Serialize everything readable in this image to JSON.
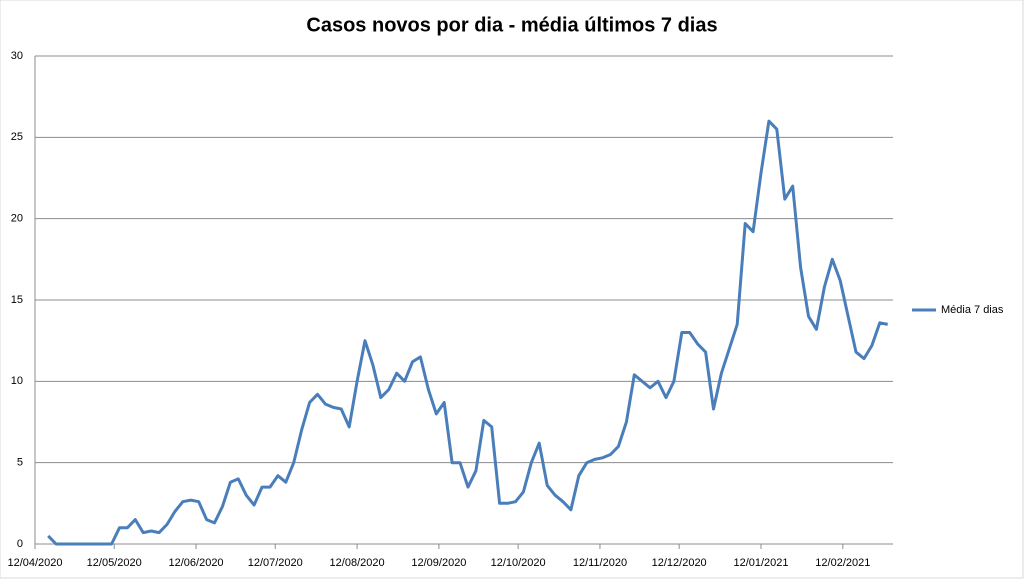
{
  "chart_data": {
    "type": "line",
    "title": "Casos novos por dia - média últimos 7 dias",
    "x": [
      "17/04/2020",
      "20/04/2020",
      "23/04/2020",
      "26/04/2020",
      "29/04/2020",
      "02/05/2020",
      "05/05/2020",
      "08/05/2020",
      "11/05/2020",
      "14/05/2020",
      "17/05/2020",
      "20/05/2020",
      "23/05/2020",
      "26/05/2020",
      "29/05/2020",
      "01/06/2020",
      "04/06/2020",
      "07/06/2020",
      "10/06/2020",
      "13/06/2020",
      "16/06/2020",
      "19/06/2020",
      "22/06/2020",
      "25/06/2020",
      "28/06/2020",
      "01/07/2020",
      "04/07/2020",
      "07/07/2020",
      "10/07/2020",
      "13/07/2020",
      "16/07/2020",
      "19/07/2020",
      "22/07/2020",
      "25/07/2020",
      "28/07/2020",
      "31/07/2020",
      "03/08/2020",
      "06/08/2020",
      "09/08/2020",
      "12/08/2020",
      "15/08/2020",
      "18/08/2020",
      "21/08/2020",
      "24/08/2020",
      "27/08/2020",
      "30/08/2020",
      "02/09/2020",
      "05/09/2020",
      "08/09/2020",
      "11/09/2020",
      "14/09/2020",
      "17/09/2020",
      "20/09/2020",
      "23/09/2020",
      "26/09/2020",
      "29/09/2020",
      "02/10/2020",
      "05/10/2020",
      "08/10/2020",
      "11/10/2020",
      "14/10/2020",
      "17/10/2020",
      "20/10/2020",
      "23/10/2020",
      "26/10/2020",
      "29/10/2020",
      "01/11/2020",
      "04/11/2020",
      "07/11/2020",
      "10/11/2020",
      "13/11/2020",
      "16/11/2020",
      "19/11/2020",
      "22/11/2020",
      "25/11/2020",
      "28/11/2020",
      "01/12/2020",
      "04/12/2020",
      "07/12/2020",
      "10/12/2020",
      "13/12/2020",
      "16/12/2020",
      "19/12/2020",
      "22/12/2020",
      "25/12/2020",
      "28/12/2020",
      "31/12/2020",
      "03/01/2021",
      "06/01/2021",
      "09/01/2021",
      "12/01/2021",
      "15/01/2021",
      "18/01/2021",
      "21/01/2021",
      "24/01/2021",
      "27/01/2021",
      "30/01/2021",
      "02/02/2021",
      "05/02/2021",
      "08/02/2021",
      "11/02/2021",
      "14/02/2021",
      "17/02/2021",
      "20/02/2021",
      "23/02/2021",
      "26/02/2021",
      "01/03/2021"
    ],
    "series": [
      {
        "name": "Média 7 dias",
        "color": "#4a7ebb",
        "values": [
          0.5,
          0,
          0,
          0,
          0,
          0,
          0,
          0,
          0,
          1.0,
          1.0,
          1.5,
          0.7,
          0.8,
          0.7,
          1.2,
          2.0,
          2.6,
          2.7,
          2.6,
          1.5,
          1.3,
          2.3,
          3.8,
          4.0,
          3.0,
          2.4,
          3.5,
          3.5,
          4.2,
          3.8,
          5.0,
          7.0,
          8.7,
          9.2,
          8.6,
          8.4,
          8.3,
          7.2,
          10.0,
          12.5,
          11,
          9.0,
          9.5,
          10.5,
          10,
          11.2,
          11.5,
          9.5,
          8.0,
          8.7,
          5.0,
          5.0,
          3.5,
          4.5,
          7.6,
          7.2,
          2.5,
          2.5,
          2.6,
          3.2,
          5.0,
          6.2,
          3.6,
          3.0,
          2.6,
          2.1,
          4.2,
          5.0,
          5.2,
          5.3,
          5.5,
          6.0,
          7.5,
          10.4,
          10.0,
          9.6,
          10.0,
          9.0,
          10.0,
          13.0,
          13.0,
          12.3,
          11.8,
          8.3,
          10.5,
          12.0,
          13.5,
          19.7,
          19.2,
          22.8,
          26.0,
          25.5,
          21.2,
          22.0,
          17.0,
          14.0,
          13.2,
          15.8,
          17.5,
          16.2,
          14.0,
          11.8,
          11.4,
          12.2,
          13.6,
          13.5
        ]
      }
    ],
    "xlim": [
      "12/04/2020",
      "03/03/2021"
    ],
    "xticks": [
      "12/04/2020",
      "12/05/2020",
      "12/06/2020",
      "12/07/2020",
      "12/08/2020",
      "12/09/2020",
      "12/10/2020",
      "12/11/2020",
      "12/12/2020",
      "12/01/2021",
      "12/02/2021"
    ],
    "ylim": [
      0,
      30
    ],
    "yticks": [
      0,
      5,
      10,
      15,
      20,
      25,
      30
    ],
    "grid": true,
    "legend": "right"
  }
}
